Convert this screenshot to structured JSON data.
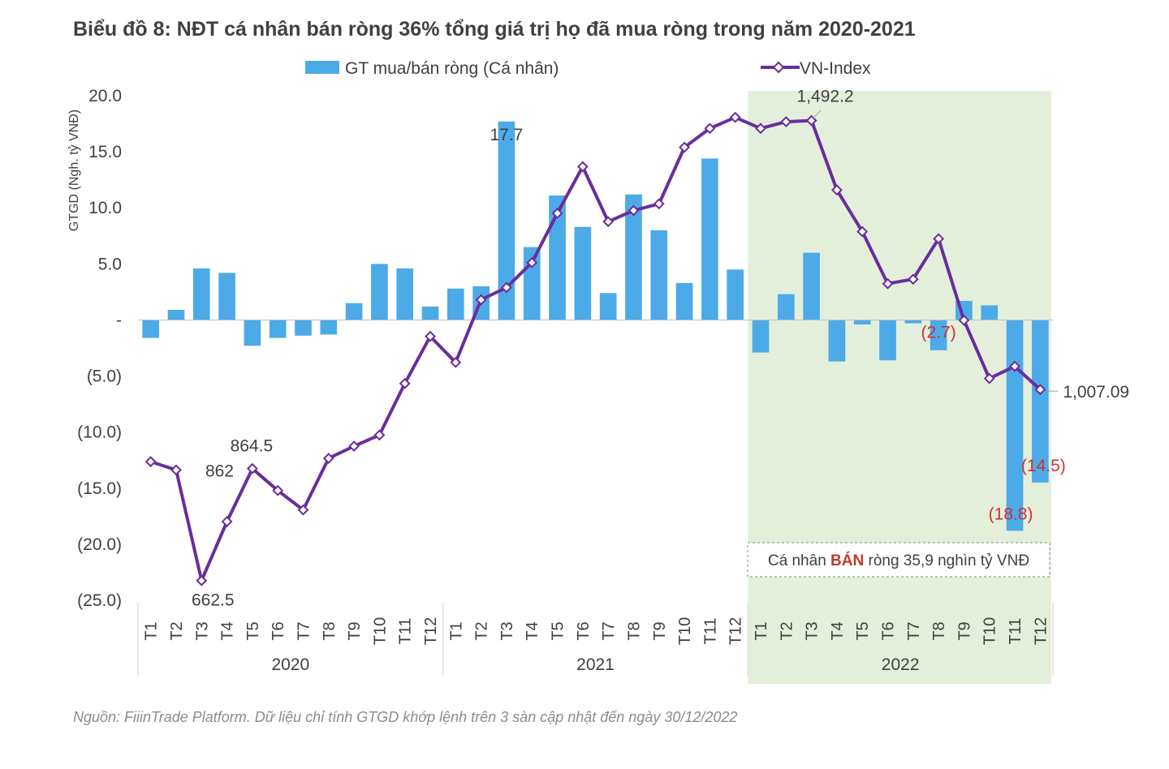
{
  "title": "Biểu đồ 8: NĐT cá nhân bán ròng 36% tổng giá trị họ đã mua ròng trong năm 2020-2021",
  "source": "Nguồn: FiiinTrade Platform. Dữ liệu chỉ tính GTGD khớp lệnh trên 3 sàn cập nhật đến ngày 30/12/2022",
  "note": {
    "prefix": "Cá nhân ",
    "strong": "BÁN",
    "suffix": " ròng 35,9 nghìn tỷ VNĐ"
  },
  "colors": {
    "bar": "#4daae8",
    "line": "#6a2d9c",
    "highlight": "#e3efdb",
    "negative_label": "#d32f2f",
    "text": "#404040"
  },
  "chart_data": {
    "type": "bar+line",
    "title": "Biểu đồ 8: NĐT cá nhân bán ròng 36% tổng giá trị họ đã mua ròng trong năm 2020-2021",
    "ylabel": "GTGD (Ngh. tỷ VNĐ)",
    "ylim": [
      -25,
      20
    ],
    "yticks": [
      20,
      15,
      10,
      5,
      0,
      -5,
      -10,
      -15,
      -20,
      -25
    ],
    "ytick_labels": [
      "20.0",
      "15.0",
      "10.0",
      "5.0",
      "-",
      "(5.0)",
      "(10.0)",
      "(15.0)",
      "(20.0)",
      "(25.0)"
    ],
    "years": [
      "2020",
      "2021",
      "2022"
    ],
    "categories": [
      "T1",
      "T2",
      "T3",
      "T4",
      "T5",
      "T6",
      "T7",
      "T8",
      "T9",
      "T10",
      "T11",
      "T12",
      "T1",
      "T2",
      "T3",
      "T4",
      "T5",
      "T6",
      "T7",
      "T8",
      "T9",
      "T10",
      "T11",
      "T12",
      "T1",
      "T2",
      "T3",
      "T4",
      "T5",
      "T6",
      "T7",
      "T8",
      "T9",
      "T10",
      "T11",
      "T12"
    ],
    "series": [
      {
        "name": "GT mua/bán ròng (Cá nhân)",
        "type": "bar",
        "values": [
          -1.6,
          0.9,
          4.6,
          4.2,
          -2.3,
          -1.6,
          -1.4,
          -1.3,
          1.5,
          5.0,
          4.6,
          1.2,
          2.8,
          3.0,
          17.7,
          6.5,
          11.1,
          8.3,
          2.4,
          11.2,
          8.0,
          3.3,
          14.4,
          4.5,
          -2.9,
          2.3,
          6.0,
          -3.7,
          -0.4,
          -3.6,
          -0.3,
          -2.7,
          1.7,
          1.3,
          -18.8,
          -14.5
        ]
      },
      {
        "name": "VN-Index",
        "type": "line",
        "values": [
          877,
          862,
          662.5,
          769,
          864.5,
          825,
          790,
          883,
          905,
          925,
          1018,
          1103,
          1056,
          1169,
          1191,
          1236,
          1325,
          1409,
          1310,
          1330,
          1342,
          1444,
          1478,
          1498,
          1478,
          1490,
          1492.2,
          1367,
          1292,
          1198,
          1206,
          1279,
          1132,
          1027,
          1049,
          1007.09
        ]
      }
    ],
    "line_axis_range": [
      627,
      1537
    ],
    "labels": [
      {
        "text": "17.7",
        "series": 0,
        "index": 14
      },
      {
        "text": "(2.7)",
        "series": 0,
        "index": 31
      },
      {
        "text": "(18.8)",
        "series": 0,
        "index": 34
      },
      {
        "text": "(14.5)",
        "series": 0,
        "index": 35
      },
      {
        "text": "862",
        "series": 1,
        "index": 1
      },
      {
        "text": "662.5",
        "series": 1,
        "index": 2
      },
      {
        "text": "864.5",
        "series": 1,
        "index": 4
      },
      {
        "text": "1,492.2",
        "series": 1,
        "index": 26
      },
      {
        "text": "1,007.09",
        "series": 1,
        "index": 35
      }
    ],
    "highlight_year": "2022"
  }
}
